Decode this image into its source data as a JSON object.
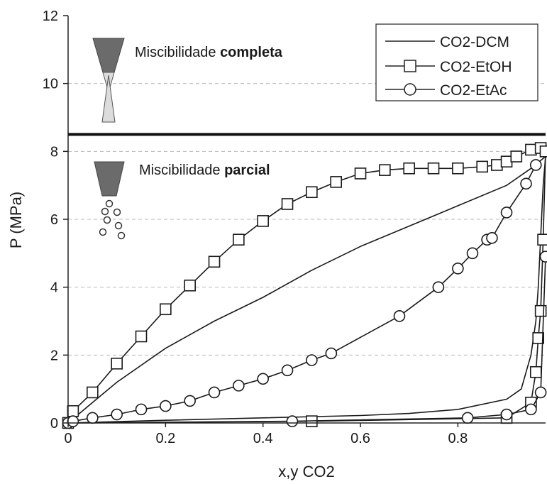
{
  "chart_data": {
    "type": "line",
    "xlabel": "x,y CO2",
    "ylabel": "P (MPa)",
    "xlim": [
      0,
      0.98
    ],
    "ylim": [
      0,
      12
    ],
    "x_ticks": [
      "0",
      "0.2",
      "0.4",
      "0.6",
      "0.8"
    ],
    "y_ticks": [
      "0",
      "2",
      "4",
      "6",
      "8",
      "10",
      "12"
    ],
    "grid": "horizontal dashed",
    "legend_position": "top-right",
    "separator_pressure": 8.5,
    "annotations": {
      "complete": {
        "text": "Miscibilidade ",
        "bold": "completa"
      },
      "partial": {
        "text": "Miscibilidade ",
        "bold": "parcial"
      }
    },
    "series": [
      {
        "name": "CO2-DCM",
        "marker": "none",
        "bubble_x": [
          0,
          0.05,
          0.1,
          0.2,
          0.3,
          0.4,
          0.5,
          0.6,
          0.7,
          0.8,
          0.9,
          0.95,
          0.98
        ],
        "bubble_y": [
          0,
          0.6,
          1.2,
          2.2,
          3.0,
          3.7,
          4.5,
          5.2,
          5.8,
          6.4,
          7.0,
          7.5,
          7.85
        ],
        "dew_x": [
          0,
          0.2,
          0.4,
          0.6,
          0.7,
          0.8,
          0.9,
          0.93,
          0.95,
          0.96,
          0.965,
          0.97,
          0.975,
          0.98
        ],
        "dew_y": [
          0,
          0.08,
          0.15,
          0.22,
          0.28,
          0.4,
          0.7,
          1.0,
          2.0,
          3.0,
          4.0,
          5.5,
          7.0,
          7.85
        ]
      },
      {
        "name": "CO2-EtOH",
        "marker": "square",
        "bubble_x": [
          0,
          0.01,
          0.05,
          0.1,
          0.15,
          0.2,
          0.25,
          0.3,
          0.35,
          0.4,
          0.45,
          0.5,
          0.55,
          0.6,
          0.65,
          0.7,
          0.75,
          0.8,
          0.85,
          0.88,
          0.9,
          0.92,
          0.95,
          0.97
        ],
        "bubble_y": [
          0,
          0.35,
          0.9,
          1.75,
          2.55,
          3.35,
          4.05,
          4.75,
          5.4,
          5.95,
          6.45,
          6.8,
          7.1,
          7.35,
          7.45,
          7.5,
          7.5,
          7.5,
          7.55,
          7.6,
          7.7,
          7.85,
          8.05,
          8.1
        ],
        "dew_x": [
          0,
          0.5,
          0.9,
          0.95,
          0.96,
          0.965,
          0.97,
          0.975,
          0.98
        ],
        "dew_y": [
          0,
          0.05,
          0.15,
          0.6,
          1.5,
          2.5,
          3.3,
          5.4,
          8.0
        ]
      },
      {
        "name": "CO2-EtAc",
        "marker": "circle",
        "bubble_x": [
          0,
          0.01,
          0.05,
          0.1,
          0.15,
          0.2,
          0.25,
          0.3,
          0.35,
          0.4,
          0.45,
          0.5,
          0.54,
          0.68,
          0.76,
          0.8,
          0.83,
          0.86,
          0.87,
          0.9,
          0.94,
          0.96
        ],
        "bubble_y": [
          0,
          0.05,
          0.15,
          0.25,
          0.4,
          0.5,
          0.65,
          0.9,
          1.1,
          1.3,
          1.55,
          1.85,
          2.05,
          3.15,
          4.0,
          4.55,
          5.0,
          5.4,
          5.45,
          6.2,
          7.05,
          7.6
        ],
        "dew_x": [
          0,
          0.46,
          0.82,
          0.9,
          0.95,
          0.97,
          0.98
        ],
        "dew_y": [
          0,
          0.05,
          0.15,
          0.25,
          0.4,
          0.9,
          4.9
        ]
      }
    ]
  }
}
